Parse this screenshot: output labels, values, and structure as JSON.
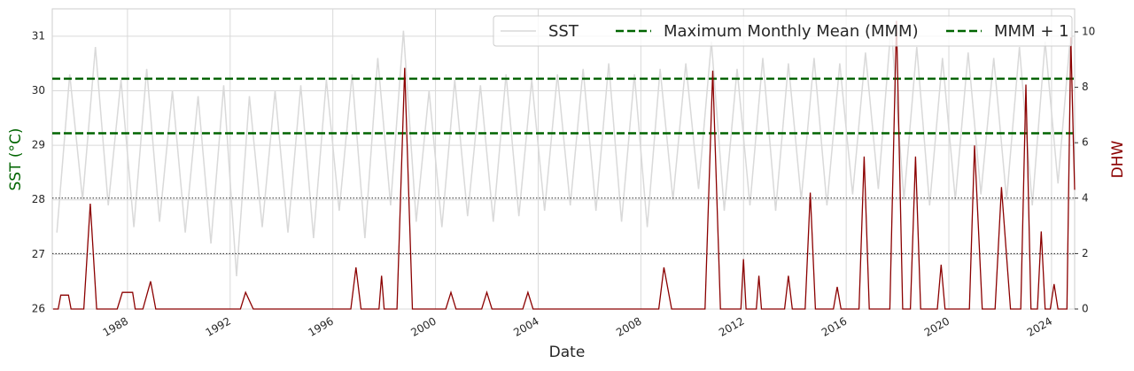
{
  "chart_data": {
    "type": "line",
    "x_label": "Date",
    "y_label": "SST (°C)",
    "y2_label": "DHW",
    "y_label_color": "#006400",
    "y2_label_color": "#8b0000",
    "xlim": [
      1985.07,
      2024.9
    ],
    "xticks": [
      1988,
      1992,
      1996,
      2000,
      2004,
      2008,
      2012,
      2016,
      2020,
      2024
    ],
    "ylim": [
      26,
      31.5
    ],
    "yticks": [
      26,
      27,
      28,
      29,
      30,
      31
    ],
    "y2lim": [
      0,
      10.83
    ],
    "y2ticks": [
      0,
      2,
      4,
      6,
      8,
      10
    ],
    "grid": true,
    "legend": "upper right",
    "reference_lines": [
      {
        "name": "Maximum Monthly Mean (MMM)",
        "value": 29.22,
        "color": "#006400"
      },
      {
        "name": "MMM + 1",
        "value": 30.22,
        "color": "#006400"
      }
    ],
    "thresholds_y2": [
      2,
      4
    ],
    "series": [
      {
        "name": "SST",
        "color": "#d9d9d9",
        "x": [
          1985.25,
          1985.75,
          1986.25,
          1986.75,
          1987.25,
          1987.75,
          1988.25,
          1988.75,
          1989.25,
          1989.75,
          1990.25,
          1990.75,
          1991.25,
          1991.75,
          1992.25,
          1992.75,
          1993.25,
          1993.75,
          1994.25,
          1994.75,
          1995.25,
          1995.75,
          1996.25,
          1996.75,
          1997.25,
          1997.75,
          1998.25,
          1998.75,
          1999.25,
          1999.75,
          2000.25,
          2000.75,
          2001.25,
          2001.75,
          2002.25,
          2002.75,
          2003.25,
          2003.75,
          2004.25,
          2004.75,
          2005.25,
          2005.75,
          2006.25,
          2006.75,
          2007.25,
          2007.75,
          2008.25,
          2008.75,
          2009.25,
          2009.75,
          2010.25,
          2010.75,
          2011.25,
          2011.75,
          2012.25,
          2012.75,
          2013.25,
          2013.75,
          2014.25,
          2014.75,
          2015.25,
          2015.75,
          2016.25,
          2016.75,
          2017.25,
          2017.75,
          2018.25,
          2018.75,
          2019.25,
          2019.75,
          2020.25,
          2020.75,
          2021.25,
          2021.75,
          2022.25,
          2022.75,
          2023.25,
          2023.75,
          2024.25,
          2024.75
        ],
        "values": [
          27.4,
          30.3,
          28.0,
          30.8,
          27.9,
          30.2,
          27.5,
          30.4,
          27.6,
          30.0,
          27.4,
          29.9,
          27.2,
          30.1,
          26.6,
          29.9,
          27.5,
          30.0,
          27.4,
          30.1,
          27.3,
          30.2,
          27.8,
          30.3,
          27.3,
          30.6,
          27.9,
          31.1,
          27.6,
          30.0,
          27.5,
          30.2,
          27.7,
          30.1,
          27.6,
          30.3,
          27.7,
          30.2,
          27.8,
          30.3,
          27.9,
          30.4,
          27.8,
          30.5,
          27.6,
          30.3,
          27.5,
          30.4,
          28.0,
          30.5,
          28.2,
          30.9,
          27.8,
          30.4,
          27.9,
          30.6,
          27.8,
          30.5,
          28.0,
          30.6,
          27.9,
          30.5,
          28.1,
          30.7,
          28.2,
          31.2,
          28.0,
          30.8,
          27.9,
          30.6,
          28.0,
          30.7,
          28.1,
          30.6,
          28.0,
          30.8,
          27.9,
          30.9,
          28.3,
          31.1
        ]
      },
      {
        "color": "#8b0000",
        "axis": "y2",
        "x": [
          1985.1,
          1985.3,
          1985.4,
          1985.7,
          1985.8,
          1986.3,
          1986.55,
          1986.8,
          1987.6,
          1987.8,
          1988.2,
          1988.3,
          1988.6,
          1988.9,
          1989.1,
          1992.4,
          1992.6,
          1992.9,
          1996.7,
          1996.9,
          1997.1,
          1997.8,
          1997.9,
          1998.0,
          1998.5,
          1998.8,
          1999.1,
          2000.4,
          2000.6,
          2000.8,
          2001.8,
          2002.0,
          2002.2,
          2003.4,
          2003.6,
          2003.8,
          2008.7,
          2008.9,
          2009.2,
          2010.5,
          2010.8,
          2011.1,
          2011.9,
          2012.0,
          2012.1,
          2012.5,
          2012.6,
          2012.7,
          2013.6,
          2013.75,
          2013.9,
          2014.4,
          2014.6,
          2014.8,
          2015.5,
          2015.65,
          2015.8,
          2016.5,
          2016.7,
          2016.9,
          2017.7,
          2017.96,
          2018.2,
          2018.5,
          2018.7,
          2018.9,
          2019.55,
          2019.7,
          2019.85,
          2020.8,
          2021.0,
          2021.3,
          2021.8,
          2022.05,
          2022.4,
          2022.8,
          2023.0,
          2023.2,
          2023.45,
          2023.6,
          2023.75,
          2023.95,
          2024.1,
          2024.25,
          2024.6,
          2024.75,
          2024.85,
          2024.9
        ],
        "values": [
          0,
          0,
          0.5,
          0.5,
          0,
          0,
          3.8,
          0,
          0,
          0.6,
          0.6,
          0,
          0,
          1.0,
          0,
          0,
          0.6,
          0,
          0,
          1.5,
          0,
          0,
          1.2,
          0,
          0,
          8.7,
          0,
          0,
          0.6,
          0,
          0,
          0.6,
          0,
          0,
          0.6,
          0,
          0,
          1.5,
          0,
          0,
          8.6,
          0,
          0,
          1.8,
          0,
          0,
          1.2,
          0,
          0,
          1.2,
          0,
          0,
          4.2,
          0,
          0,
          0.8,
          0,
          0,
          5.5,
          0,
          0,
          10.4,
          0,
          0,
          5.5,
          0,
          0,
          1.6,
          0,
          0,
          5.9,
          0,
          0,
          4.4,
          0,
          0,
          8.1,
          0,
          0,
          2.8,
          0,
          0,
          0.9,
          0,
          0,
          9.8,
          6.0,
          4.3
        ]
      }
    ]
  }
}
